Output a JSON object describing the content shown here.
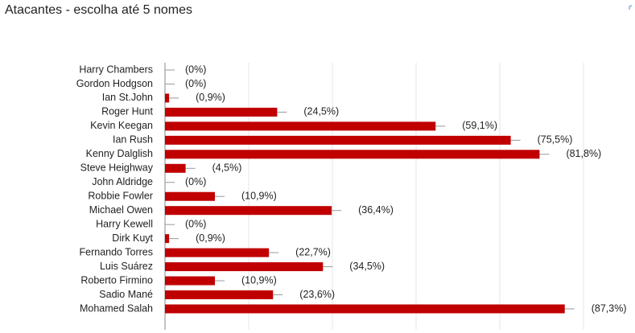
{
  "chart_data": {
    "type": "barh",
    "title": "Atacantes - escolha até 5 nomes",
    "categories": [
      "Harry Chambers",
      "Gordon Hodgson",
      "Ian St.John",
      "Roger Hunt",
      "Kevin Keegan",
      "Ian Rush",
      "Kenny Dalglish",
      "Steve Heighway",
      "John Aldridge",
      "Robbie Fowler",
      "Michael Owen",
      "Harry Kewell",
      "Dirk Kuyt",
      "Fernando Torres",
      "Luis Suárez",
      "Roberto Firmino",
      "Sadio Mané",
      "Mohamed Salah"
    ],
    "values": [
      0,
      0,
      0.9,
      24.5,
      59.1,
      75.5,
      81.8,
      4.5,
      0,
      10.9,
      36.4,
      0,
      0.9,
      22.7,
      34.5,
      10.9,
      23.6,
      87.3
    ],
    "value_labels": [
      "(0%)",
      "(0%)",
      "(0,9%)",
      "(24,5%)",
      "(59,1%)",
      "(75,5%)",
      "(81,8%)",
      "(4,5%)",
      "(0%)",
      "(10,9%)",
      "(36,4%)",
      "(0%)",
      "(0,9%)",
      "(22,7%)",
      "(34,5%)",
      "(10,9%)",
      "(23,6%)",
      "(87,3%)"
    ],
    "color": "#c00000",
    "xlim": [
      0,
      100
    ]
  }
}
